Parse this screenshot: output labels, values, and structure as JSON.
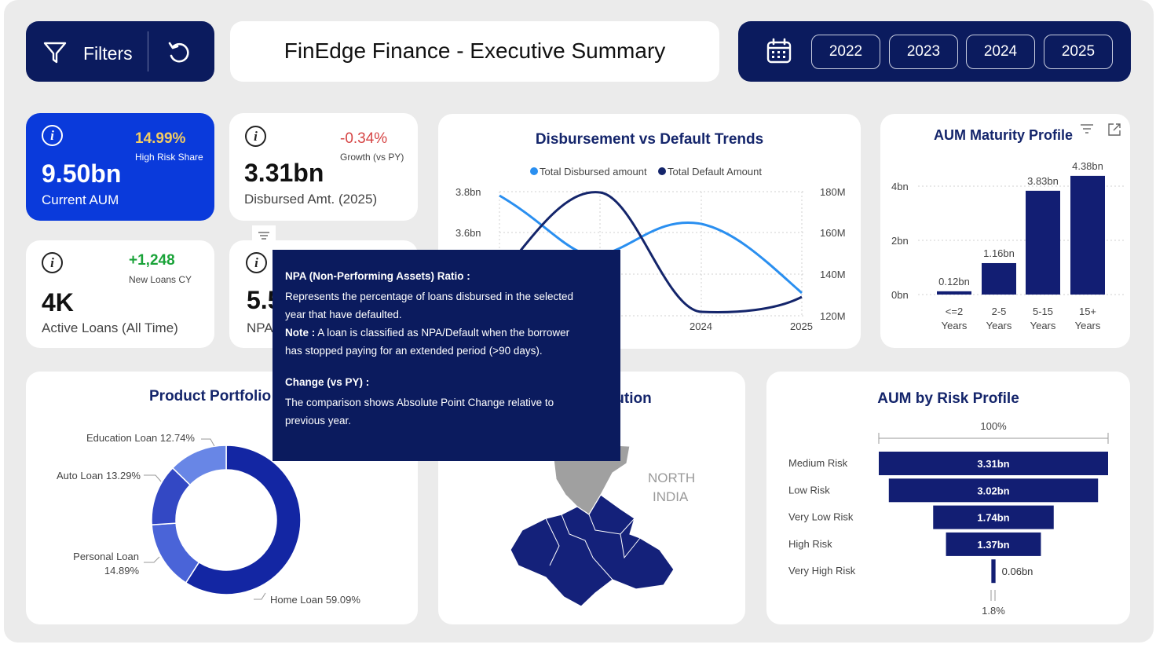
{
  "topbar": {
    "filters_label": "Filters",
    "title": "FinEdge Finance - Executive Summary",
    "years": [
      "2022",
      "2023",
      "2024",
      "2025"
    ]
  },
  "kpis": {
    "aum": {
      "value": "9.50bn",
      "label": "Current AUM",
      "delta": "14.99%",
      "delta_label": "High Risk Share"
    },
    "disbursed": {
      "value": "3.31bn",
      "label": "Disbursed Amt. (2025)",
      "delta": "-0.34%",
      "delta_label": "Growth (vs PY)"
    },
    "active_loans": {
      "value": "4K",
      "label": "Active Loans (All Time)",
      "delta": "+1,248",
      "delta_label": "New Loans CY"
    },
    "npa": {
      "value": "5.5",
      "label": "NPA"
    }
  },
  "colors": {
    "navy": "#0b1b5e",
    "accent_blue": "#0a3adb",
    "light_line": "#2a8ff0",
    "bar": "#121e73",
    "positive": "#1aa339",
    "negative": "#d64545",
    "gold": "#f4cd62"
  },
  "trend_chart": {
    "title": "Disbursement vs Default Trends",
    "legend": [
      "Total Disbursed amount",
      "Total Default Amount"
    ],
    "left_ticks": [
      "3.8bn",
      "3.6bn"
    ],
    "right_ticks": [
      "180M",
      "160M",
      "140M",
      "120M"
    ],
    "x_ticks": [
      "2024",
      "2025"
    ]
  },
  "maturity_chart": {
    "title": "AUM Maturity Profile",
    "y_ticks": [
      "4bn",
      "2bn",
      "0bn"
    ],
    "categories": [
      [
        "<=2",
        "Years"
      ],
      [
        "2-5",
        "Years"
      ],
      [
        "5-15",
        "Years"
      ],
      [
        "15+",
        "Years"
      ]
    ],
    "values": [
      0.12,
      1.16,
      3.83,
      4.38
    ],
    "labels": [
      "0.12bn",
      "1.16bn",
      "3.83bn",
      "4.38bn"
    ]
  },
  "portfolio_chart": {
    "title": "Product Portfolio M",
    "slices": [
      {
        "name": "Home Loan",
        "pct": 59.09,
        "label": "Home Loan 59.09%",
        "color": "#1326a3"
      },
      {
        "name": "Personal Loan",
        "pct": 14.89,
        "label_a": "Personal Loan",
        "label_b": "14.89%",
        "color": "#4a64d8"
      },
      {
        "name": "Auto Loan",
        "pct": 13.29,
        "label": "Auto Loan 13.29%",
        "color": "#3348c4"
      },
      {
        "name": "Education Loan",
        "pct": 12.74,
        "label": "Education Loan 12.74%",
        "color": "#6886e6"
      }
    ]
  },
  "map_chart": {
    "title_fragment": "ribution",
    "region_label_1": "NORTH",
    "region_label_2": "INDIA"
  },
  "risk_chart": {
    "title": "AUM by Risk Profile",
    "top_label": "100%",
    "bottom_label": "1.8%",
    "rows": [
      {
        "name": "Medium Risk",
        "value": 3.31,
        "label": "3.31bn"
      },
      {
        "name": "Low Risk",
        "value": 3.02,
        "label": "3.02bn"
      },
      {
        "name": "Very Low Risk",
        "value": 1.74,
        "label": "1.74bn"
      },
      {
        "name": "High Risk",
        "value": 1.37,
        "label": "1.37bn"
      },
      {
        "name": "Very High Risk",
        "value": 0.06,
        "label": "0.06bn"
      }
    ]
  },
  "tooltip": {
    "heading": "NPA (Non-Performing Assets) Ratio :",
    "line1": "Represents the percentage of loans disbursed in the selected",
    "line2": "year that have defaulted.",
    "note_label": "Note :",
    "note1": " A loan is classified as NPA/Default when the borrower",
    "note2": "has stopped paying for an extended period (>90 days).",
    "change_heading": "Change (vs PY) :",
    "change1": "The comparison shows Absolute Point Change relative to",
    "change2": "previous year."
  }
}
